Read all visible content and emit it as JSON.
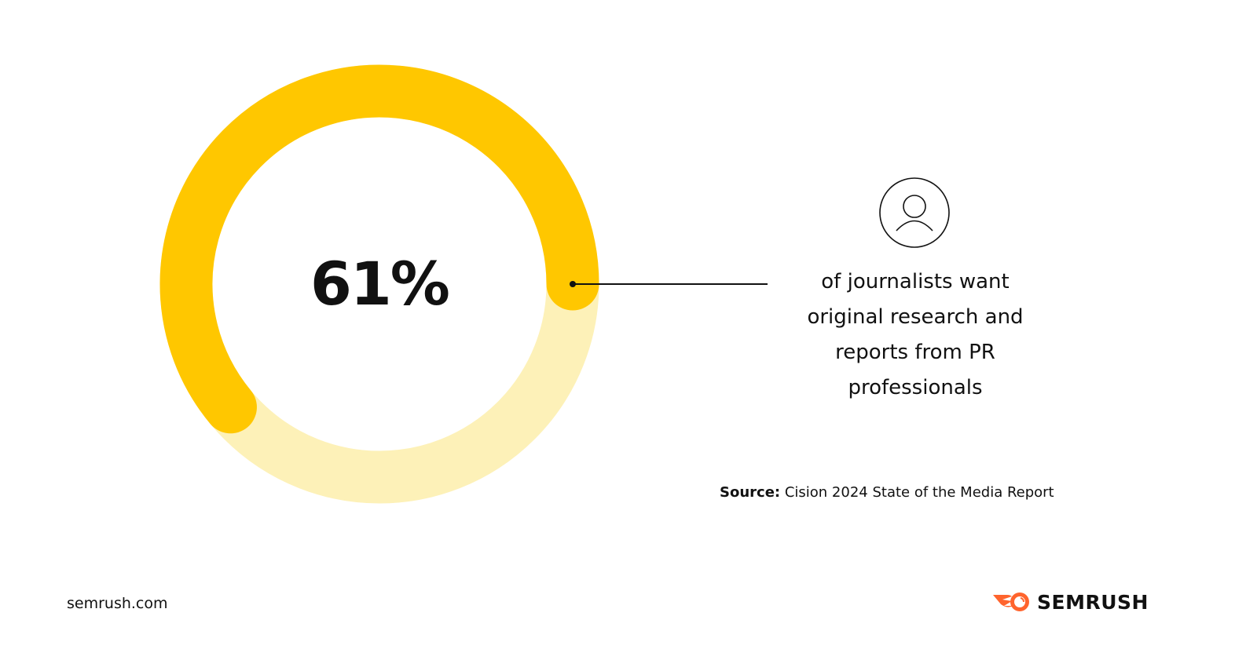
{
  "chart_data": {
    "type": "pie",
    "variant": "donut",
    "values": [
      61,
      39
    ],
    "center_label": "61%",
    "annotation": "of journalists want original research and reports from PR professionals",
    "colors": {
      "filled": "#FFC700",
      "remaining": "#FDF1B8"
    }
  },
  "description_lines": [
    "of journalists want",
    "original research and",
    "reports from PR",
    "professionals"
  ],
  "source": {
    "label": "Source:",
    "text": "Cision 2024 State of the Media Report"
  },
  "footer": {
    "site": "semrush.com",
    "brand": "SEMRUSH",
    "brand_color": "#FF642D"
  },
  "icons": {
    "annotation_icon": "person-icon",
    "logo_icon": "semrush-fireball-icon"
  }
}
